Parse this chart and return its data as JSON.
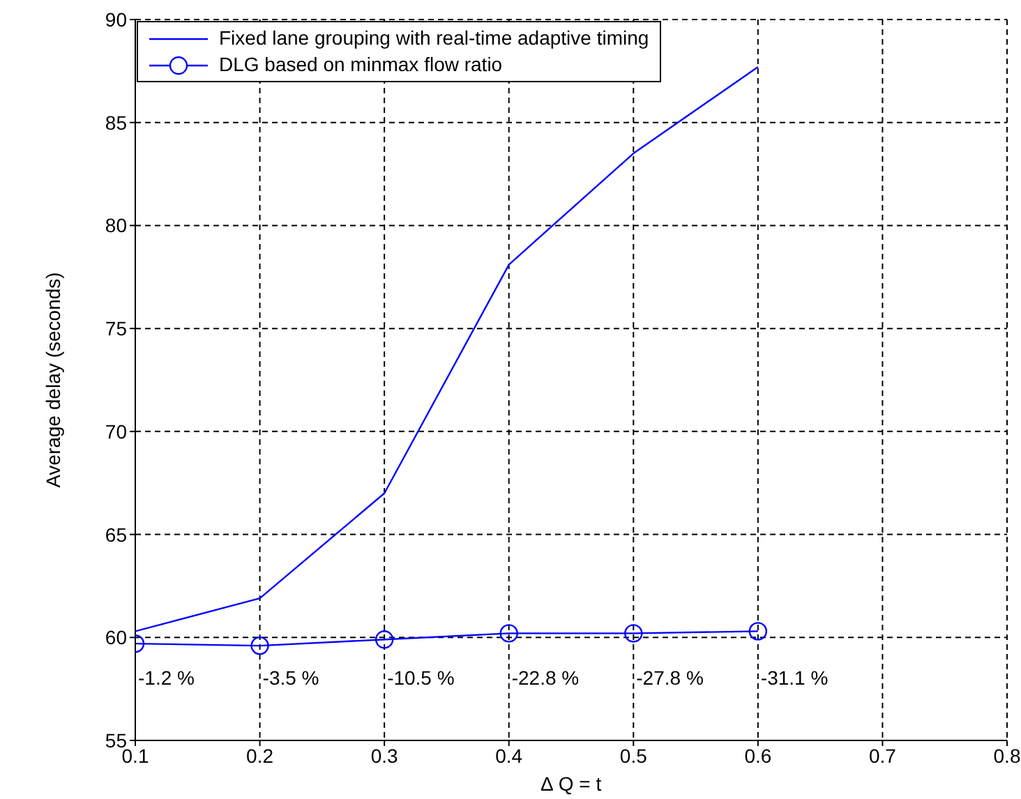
{
  "chart_data": {
    "type": "line",
    "xlabel": "∆ Q = t",
    "ylabel": "Average delay (seconds)",
    "x": [
      0.1,
      0.2,
      0.3,
      0.4,
      0.5,
      0.6
    ],
    "series": [
      {
        "name": "Fixed lane grouping with real-time adaptive timing",
        "color": "#0000ff",
        "values": [
          60.3,
          61.9,
          67,
          78.1,
          83.5,
          87.7
        ],
        "marker": "none"
      },
      {
        "name": "DLG based on minmax flow ratio",
        "color": "#0000ff",
        "values": [
          59.7,
          59.6,
          59.9,
          60.2,
          60.2,
          60.3
        ],
        "marker": "circle"
      }
    ],
    "xlim": [
      0.1,
      0.8
    ],
    "xticks": [
      0.1,
      0.2,
      0.3,
      0.4,
      0.5,
      0.6,
      0.7,
      0.8
    ],
    "ylim": [
      55,
      90
    ],
    "yticks": [
      55,
      60,
      65,
      70,
      75,
      80,
      85,
      90
    ],
    "grid": true,
    "legend": "top left",
    "line_style": "solid",
    "annotations": [
      "-1.2 %",
      "-3.5 %",
      "-10.5 %",
      "-22.8 %",
      "-27.8 %",
      "-31.1 %"
    ]
  }
}
